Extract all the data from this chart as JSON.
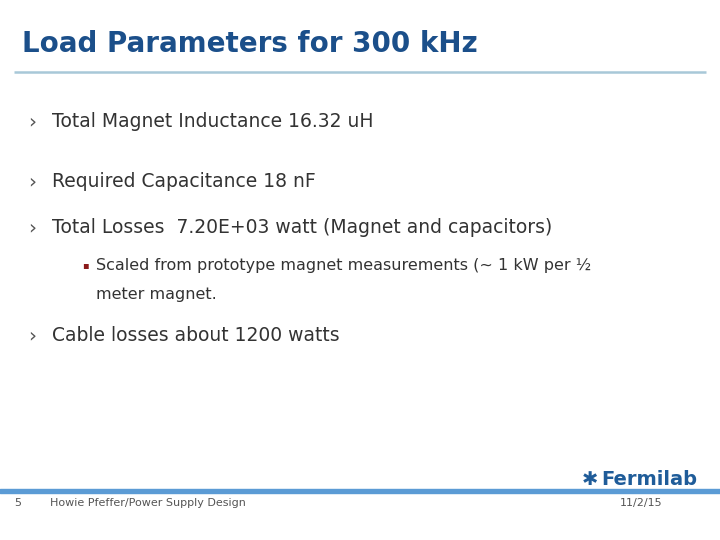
{
  "title": "Load Parameters for 300 kHz",
  "title_color": "#1B4F8A",
  "title_fontsize": 20,
  "bg_color": "#FFFFFF",
  "rule_color": "#A8C8D8",
  "bullet_color": "#8B1A1A",
  "chevron_color": "#555555",
  "text_color": "#333333",
  "bullet1": "Total Magnet Inductance 16.32 uH",
  "bullet2": "Required Capacitance 18 nF",
  "bullet3": "Total Losses  7.20E+03 watt (Magnet and capacitors)",
  "sub_bullet_line1": "Scaled from prototype magnet measurements (~ 1 kW per ½",
  "sub_bullet_line2": "meter magnet.",
  "bullet4": "Cable losses about 1200 watts",
  "footer_left_num": "5",
  "footer_left_text": "Howie Pfeffer/Power Supply Design",
  "footer_right_text": "11/2/15",
  "footer_color": "#5B9BD5",
  "fermilab_color": "#1F5C99",
  "fermilab_symbol": "✱",
  "fermilab_label": "Fermilab"
}
